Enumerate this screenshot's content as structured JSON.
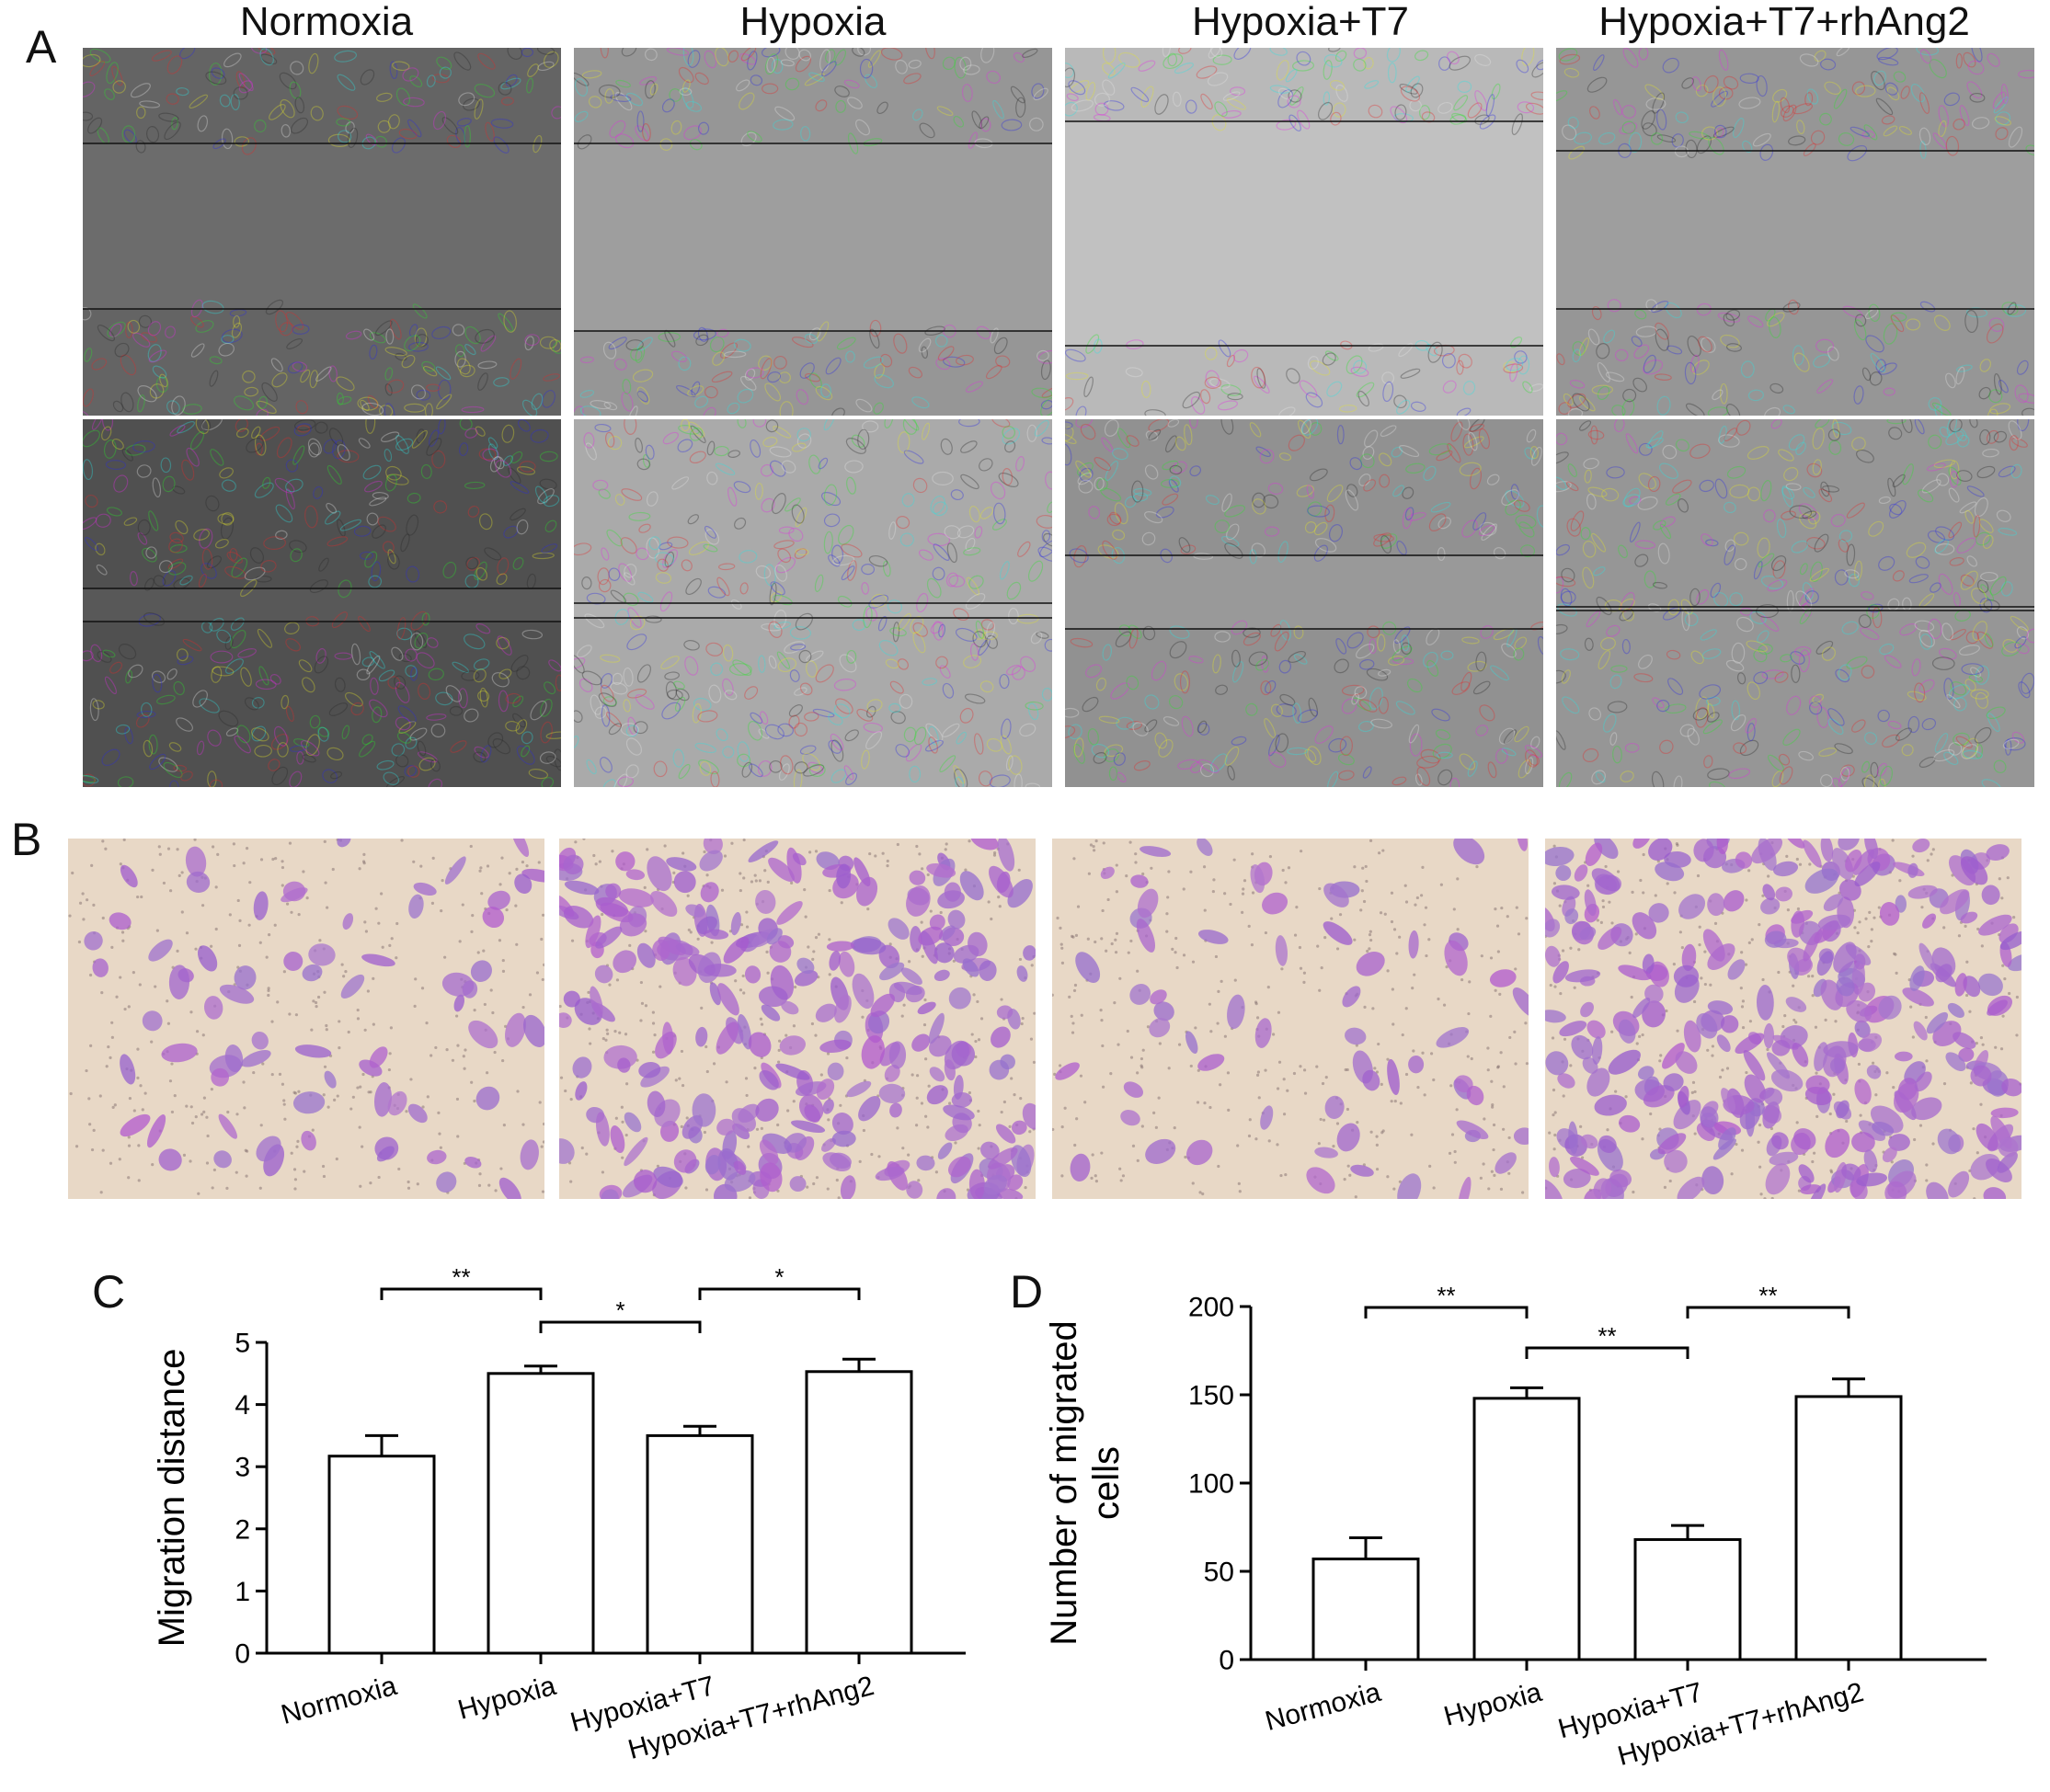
{
  "panels": {
    "a": "A",
    "b": "B",
    "c": "C",
    "d": "D"
  },
  "column_titles": [
    "Normoxia",
    "Hypoxia",
    "Hypoxia+T7",
    "Hypoxia+T7+rhAng2"
  ],
  "chart_data": [
    {
      "type": "bar",
      "panel": "C",
      "categories": [
        "Normoxia",
        "Hypoxia",
        "Hypoxia+T7",
        "Hypoxia+T7+rhAng2"
      ],
      "values": [
        3.17,
        4.5,
        3.5,
        4.53
      ],
      "errors": [
        0.33,
        0.12,
        0.15,
        0.2
      ],
      "xlabel": "",
      "ylabel": "Migration distance",
      "ylim": [
        0,
        5
      ],
      "yticks": [
        "0",
        "1",
        "2",
        "3",
        "4",
        "5"
      ],
      "significance": [
        {
          "from": 0,
          "to": 1,
          "label": "**"
        },
        {
          "from": 1,
          "to": 2,
          "label": "*"
        },
        {
          "from": 2,
          "to": 3,
          "label": "*"
        }
      ],
      "grid": false
    },
    {
      "type": "bar",
      "panel": "D",
      "categories": [
        "Normoxia",
        "Hypoxia",
        "Hypoxia+T7",
        "Hypoxia+T7+rhAng2"
      ],
      "values": [
        57,
        148,
        68,
        149
      ],
      "errors": [
        12,
        6,
        8,
        10
      ],
      "xlabel": "",
      "ylabel_lines": [
        "Number of migrated",
        "cells"
      ],
      "ylim": [
        0,
        200
      ],
      "yticks": [
        "0",
        "50",
        "100",
        "150",
        "200"
      ],
      "significance": [
        {
          "from": 0,
          "to": 1,
          "label": "**"
        },
        {
          "from": 1,
          "to": 2,
          "label": "**"
        },
        {
          "from": 2,
          "to": 3,
          "label": "**"
        }
      ],
      "grid": false
    }
  ]
}
